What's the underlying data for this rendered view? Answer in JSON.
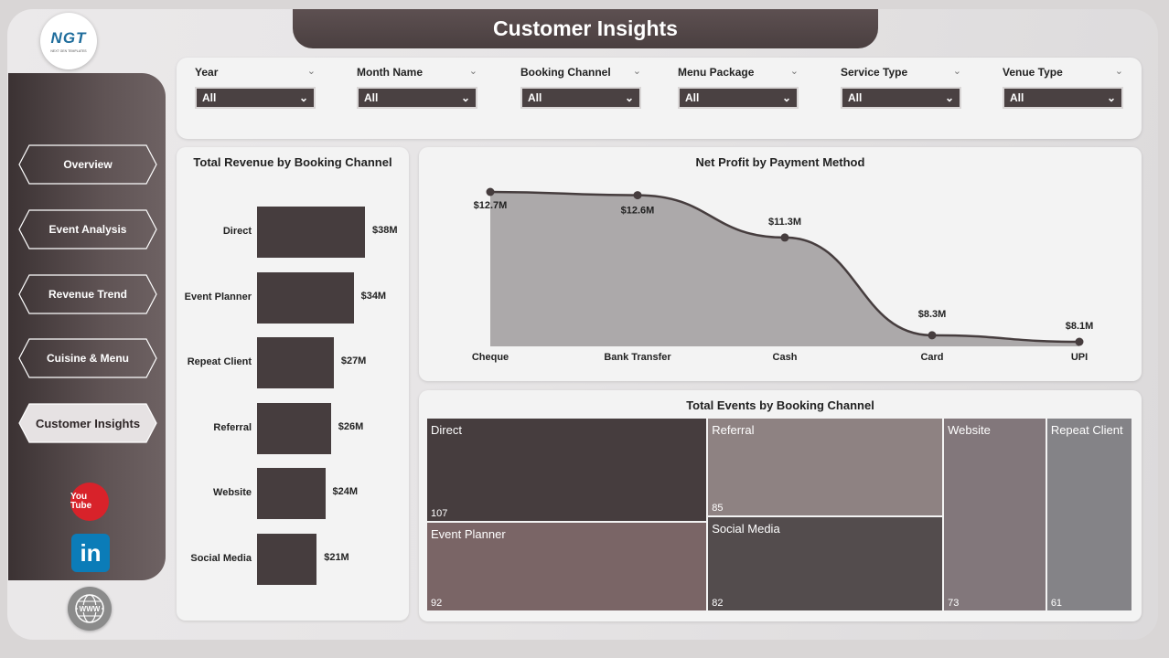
{
  "app": {
    "title": "Customer Insights",
    "logo_text": "NGT",
    "logo_subtext": "NEXT GEN TEMPLATES"
  },
  "nav": {
    "items": [
      {
        "label": "Overview"
      },
      {
        "label": "Event Analysis"
      },
      {
        "label": "Revenue Trend"
      },
      {
        "label": "Cuisine & Menu"
      },
      {
        "label": "Customer Insights"
      }
    ],
    "active_index": 4
  },
  "social": {
    "youtube_label": "You Tube",
    "linkedin_label": "in"
  },
  "filters": [
    {
      "label": "Year",
      "value": "All"
    },
    {
      "label": "Month Name",
      "value": "All"
    },
    {
      "label": "Booking Channel",
      "value": "All"
    },
    {
      "label": "Menu Package",
      "value": "All"
    },
    {
      "label": "Service Type",
      "value": "All"
    },
    {
      "label": "Venue Type",
      "value": "All"
    }
  ],
  "chart_data": [
    {
      "type": "bar",
      "title": "Total Revenue by Booking Channel",
      "orientation": "horizontal",
      "categories": [
        "Direct",
        "Event Planner",
        "Repeat Client",
        "Referral",
        "Website",
        "Social Media"
      ],
      "values": [
        38,
        34,
        27,
        26,
        24,
        21
      ],
      "value_labels": [
        "$38M",
        "$34M",
        "$27M",
        "$26M",
        "$24M",
        "$21M"
      ],
      "unit": "$M",
      "color": "#463d3e"
    },
    {
      "type": "area",
      "title": "Net Profit by Payment Method",
      "categories": [
        "Cheque",
        "Bank Transfer",
        "Cash",
        "Card",
        "UPI"
      ],
      "values": [
        12.7,
        12.6,
        11.3,
        8.3,
        8.1
      ],
      "value_labels": [
        "$12.7M",
        "$12.6M",
        "$11.3M",
        "$8.3M",
        "$8.1M"
      ],
      "unit": "$M",
      "line_color": "#463d3e",
      "fill_color": "#aca9aa"
    },
    {
      "type": "treemap",
      "title": "Total Events by Booking Channel",
      "items": [
        {
          "name": "Direct",
          "value": 107,
          "color": "#463d3e"
        },
        {
          "name": "Event Planner",
          "value": 92,
          "color": "#7a6566"
        },
        {
          "name": "Referral",
          "value": 85,
          "color": "#8e8282"
        },
        {
          "name": "Social Media",
          "value": 82,
          "color": "#534c4d"
        },
        {
          "name": "Website",
          "value": 73,
          "color": "#82777b"
        },
        {
          "name": "Repeat Client",
          "value": 61,
          "color": "#848387"
        }
      ]
    }
  ]
}
